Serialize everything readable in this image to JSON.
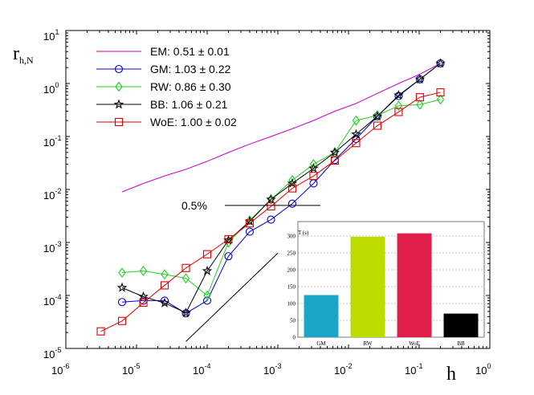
{
  "chart_data": [
    {
      "type": "line",
      "scale": "log-log",
      "xlabel": "h",
      "ylabel": "r",
      "ylabel_sub": "h,N",
      "xlim_exp": [
        -6,
        0
      ],
      "ylim_exp": [
        -5,
        1
      ],
      "x_ticks": [
        {
          "base": "10",
          "exp": "-6"
        },
        {
          "base": "10",
          "exp": "-5"
        },
        {
          "base": "10",
          "exp": "-4"
        },
        {
          "base": "10",
          "exp": "-3"
        },
        {
          "base": "10",
          "exp": "-2"
        },
        {
          "base": "10",
          "exp": "-1"
        },
        {
          "base": "10",
          "exp": "0"
        }
      ],
      "y_ticks": [
        {
          "base": "10",
          "exp": "-5"
        },
        {
          "base": "10",
          "exp": "-4"
        },
        {
          "base": "10",
          "exp": "-3"
        },
        {
          "base": "10",
          "exp": "-2"
        },
        {
          "base": "10",
          "exp": "-1"
        },
        {
          "base": "10",
          "exp": "0"
        },
        {
          "base": "10",
          "exp": "1"
        }
      ],
      "legend_position": "top-left",
      "series": [
        {
          "name": "EM",
          "label": "EM: 0.51 ± 0.01",
          "color": "#cc00cc",
          "marker": "none",
          "x": [
            6.25e-06,
            1.25e-05,
            2.5e-05,
            5e-05,
            0.0001,
            0.0002,
            0.0004,
            0.0008,
            0.0016,
            0.0032,
            0.0064,
            0.0128,
            0.0256,
            0.0512,
            0.1024,
            0.2
          ],
          "y": [
            0.009,
            0.013,
            0.018,
            0.024,
            0.034,
            0.05,
            0.072,
            0.1,
            0.14,
            0.2,
            0.3,
            0.42,
            0.65,
            1.0,
            1.5,
            2.4
          ]
        },
        {
          "name": "GM",
          "label": "GM: 1.03 ± 0.22",
          "color": "#0000cc",
          "marker": "circle",
          "x": [
            6.25e-06,
            1.25e-05,
            2.5e-05,
            5e-05,
            0.0001,
            0.0002,
            0.0004,
            0.0008,
            0.0016,
            0.0032,
            0.0064,
            0.0128,
            0.0256,
            0.0512,
            0.1024,
            0.2
          ],
          "y": [
            7.5e-05,
            8e-05,
            8e-05,
            4.6e-05,
            8e-05,
            0.00055,
            0.0016,
            0.0027,
            0.0054,
            0.013,
            0.036,
            0.09,
            0.24,
            0.58,
            1.2,
            2.4
          ]
        },
        {
          "name": "RW",
          "label": "RW: 0.86 ± 0.30",
          "color": "#22cc22",
          "marker": "diamond",
          "x": [
            6.25e-06,
            1.25e-05,
            2.5e-05,
            5e-05,
            0.0001,
            0.0002,
            0.0004,
            0.0008,
            0.0016,
            0.0032,
            0.0064,
            0.0128,
            0.0256,
            0.0512,
            0.1024,
            0.2
          ],
          "y": [
            0.00027,
            0.00029,
            0.00025,
            0.00021,
            0.0001,
            0.001,
            0.0026,
            0.0065,
            0.015,
            0.03,
            0.05,
            0.2,
            0.25,
            0.38,
            0.4,
            0.5
          ]
        },
        {
          "name": "BB",
          "label": "BB: 1.06 ± 0.21",
          "color": "#000000",
          "marker": "star",
          "x": [
            6.25e-06,
            1.25e-05,
            2.5e-05,
            5e-05,
            0.0001,
            0.0002,
            0.0004,
            0.0008,
            0.0016,
            0.0032,
            0.0064,
            0.0128,
            0.0256,
            0.0512,
            0.1024,
            0.2
          ],
          "y": [
            0.00014,
            9.5e-05,
            7.2e-05,
            4.7e-05,
            0.00029,
            0.0011,
            0.0025,
            0.0065,
            0.013,
            0.025,
            0.05,
            0.11,
            0.24,
            0.6,
            1.2,
            2.4
          ]
        },
        {
          "name": "WoE",
          "label": "WoE: 1.00 ± 0.02",
          "color": "#dd0000",
          "marker": "square",
          "x": [
            3.125e-06,
            6.25e-06,
            1.25e-05,
            2.5e-05,
            5e-05,
            0.0001,
            0.0002,
            0.0004,
            0.0008,
            0.0016,
            0.0032,
            0.0064,
            0.0128,
            0.0256,
            0.0512,
            0.1024,
            0.2
          ],
          "y": [
            2.1e-05,
            3.3e-05,
            7.3e-05,
            0.000155,
            0.00033,
            0.0006,
            0.00115,
            0.0023,
            0.0048,
            0.0105,
            0.018,
            0.035,
            0.075,
            0.16,
            0.29,
            0.55,
            0.68
          ]
        }
      ],
      "reference_line": {
        "label": "0.5%",
        "y": 0.005,
        "x_from": 0.0001,
        "x_to": 0.004
      },
      "slope_line": {
        "x": [
          5e-05,
          0.001
        ],
        "y": [
          1.35e-05,
          0.00063
        ]
      }
    },
    {
      "type": "bar",
      "ylabel": "T (s)",
      "ylim": [
        0,
        300
      ],
      "y_ticks": [
        "0",
        "50",
        "100",
        "150",
        "200",
        "250",
        "300"
      ],
      "categories": [
        "GM",
        "RW",
        "WoE",
        "BB"
      ],
      "values": [
        125,
        298,
        308,
        70
      ],
      "colors": [
        "#1aa6c6",
        "#bcdc00",
        "#e0204a",
        "#000000"
      ],
      "grid": true
    }
  ]
}
